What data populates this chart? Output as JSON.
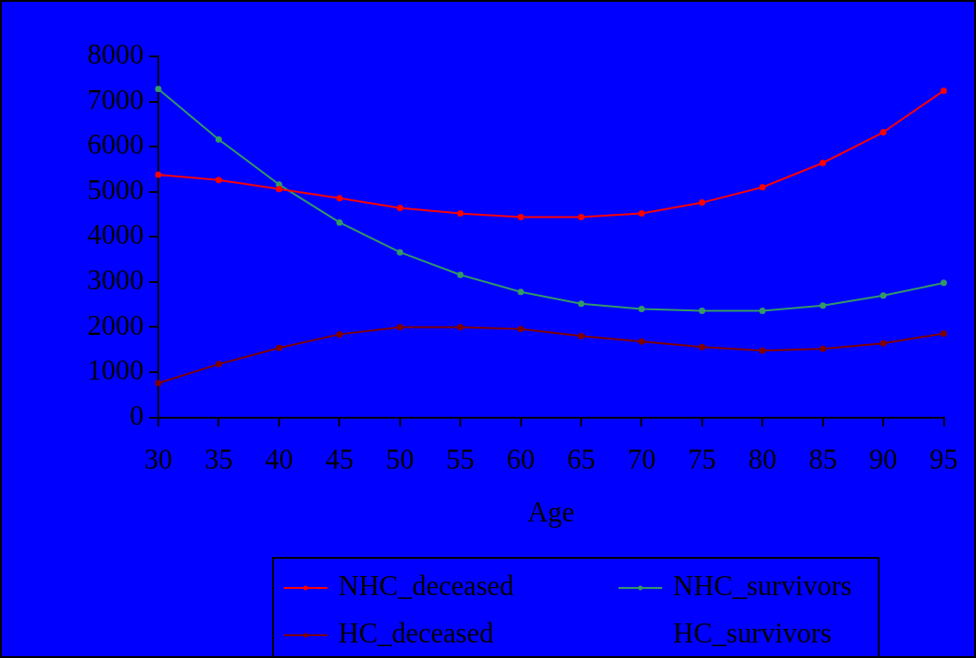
{
  "chart_data": {
    "type": "line",
    "xlabel": "Age",
    "x": [
      30,
      35,
      40,
      45,
      50,
      55,
      60,
      65,
      70,
      75,
      80,
      85,
      90,
      95
    ],
    "xlim": [
      30,
      95
    ],
    "xticks": [
      30,
      35,
      40,
      45,
      50,
      55,
      60,
      65,
      70,
      75,
      80,
      85,
      90,
      95
    ],
    "ylim": [
      0,
      8000
    ],
    "yticks": [
      0,
      1000,
      2000,
      3000,
      4000,
      5000,
      6000,
      7000,
      8000
    ],
    "grid": false,
    "legend": "bottom",
    "marker": "circle",
    "line_style": "solid",
    "series": [
      {
        "name": "NHC_deceased",
        "color": "#ff0000",
        "values": [
          5380,
          5260,
          5060,
          4860,
          4640,
          4520,
          4440,
          4440,
          4520,
          4760,
          5100,
          5640,
          6320,
          7240
        ]
      },
      {
        "name": "NHC_survivors",
        "color": "#339966",
        "values": [
          7280,
          6160,
          5160,
          4320,
          3660,
          3160,
          2780,
          2520,
          2400,
          2360,
          2360,
          2480,
          2700,
          2980
        ]
      },
      {
        "name": "HC_deceased",
        "color": "#800000",
        "values": [
          760,
          1180,
          1540,
          1840,
          2000,
          2000,
          1960,
          1800,
          1680,
          1560,
          1480,
          1520,
          1640,
          1860
        ]
      },
      {
        "name": "HC_survivors",
        "values": [
          null,
          null,
          null,
          null,
          null,
          null,
          null,
          null,
          null,
          null,
          null,
          null,
          null,
          null
        ]
      }
    ]
  }
}
